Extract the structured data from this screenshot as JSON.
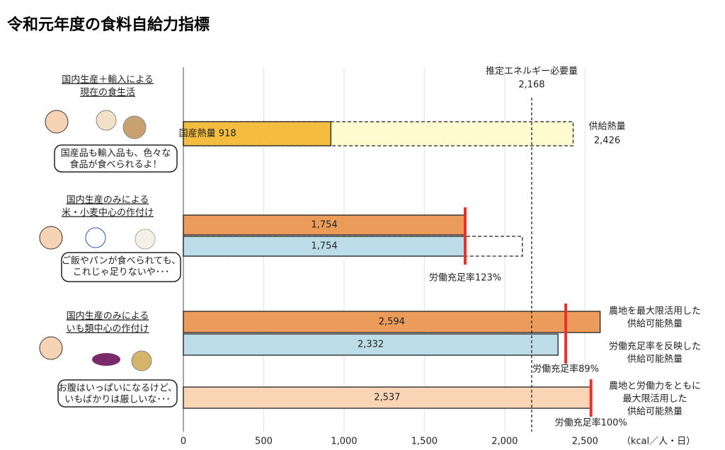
{
  "chart_data": {
    "type": "bar",
    "title": "令和元年度の食料自給力指標",
    "unit_label": "（kcal／人・日）",
    "xlim": [
      0,
      2600
    ],
    "xticks": [
      0,
      500,
      {
        "value": 1000,
        "label": "1,000"
      },
      {
        "value": 1500,
        "label": "1,500"
      },
      {
        "value": 2000,
        "label": "2,000"
      },
      {
        "value": 2500,
        "label": "2,500"
      }
    ],
    "grid": true,
    "reference": {
      "label": "推定エネルギー必要量",
      "value": 2168,
      "value_label": "2,168"
    },
    "groups": [
      {
        "label": [
          "国内生産＋輸入による",
          "現在の食生活"
        ],
        "speech": [
          "国産品も輸入品も、色々な",
          "食品が食べられるよ！"
        ],
        "bars": [
          {
            "value": 2426,
            "color": "#fffbd0",
            "style": "dashed",
            "caption": "供給熱量",
            "value_label": "2,426"
          },
          {
            "value": 918,
            "color": "#f5bd3f",
            "style": "solid",
            "value_label": "国産熱量 918"
          }
        ],
        "markers": [],
        "side_labels": []
      },
      {
        "label": [
          "国内生産のみによる",
          "米・小麦中心の作付け"
        ],
        "speech": [
          "ご飯やパンが食べられても、",
          "これじゃ足りないや･･･"
        ],
        "bars": [
          {
            "value": 1754,
            "color": "#eb9b5a",
            "style": "solid",
            "value_label": "1,754"
          },
          {
            "value": 2110,
            "color": "#ffffff",
            "style": "dashed"
          },
          {
            "value": 1754,
            "color": "#bcdde8",
            "style": "solid",
            "value_label": "1,754"
          }
        ],
        "markers": [
          {
            "value": 1754,
            "label": "労働充足率123%"
          }
        ],
        "side_labels": []
      },
      {
        "label": [
          "国内生産のみによる",
          "いも類中心の作付け"
        ],
        "speech": [
          "お腹はいっぱいになるけど、",
          "いもばかりは厳しいな･･･"
        ],
        "bars": [
          {
            "value": 2594,
            "color": "#eb9b5a",
            "style": "solid",
            "value_label": "2,594"
          },
          {
            "value": 2332,
            "color": "#bcdde8",
            "style": "solid",
            "value_label": "2,332"
          },
          {
            "value": 2537,
            "color": "#f9d5b6",
            "style": "solid",
            "value_label": "2,537"
          }
        ],
        "markers": [
          {
            "value": 2380,
            "label": "労働充足率89%"
          },
          {
            "value": 2537,
            "label": "労働充足率100%"
          }
        ],
        "side_labels": [
          {
            "lines": [
              "農地を最大限活用した",
              "供給可能熱量"
            ],
            "color": "#222222"
          },
          {
            "lines": [
              "労働充足率を反映した",
              "供給可能熱量"
            ],
            "color": "#e8322a"
          },
          {
            "lines": [
              "農地と労働力をともに",
              "最大限活用した",
              "供給可能熱量"
            ],
            "color": "#e8322a"
          }
        ]
      }
    ]
  }
}
